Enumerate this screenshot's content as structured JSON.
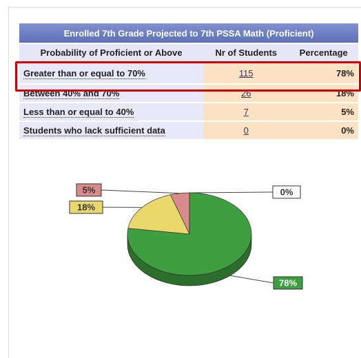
{
  "table": {
    "title": "Enrolled 7th Grade Projected to 7th PSSA Math (Proficient)",
    "headers": [
      "Probability of Proficient or Above",
      "Nr of Students",
      "Percentage"
    ],
    "rows": [
      [
        "Greater than or equal to 70%",
        115,
        "78%"
      ],
      [
        "Between 40% and 70%",
        26,
        "18%"
      ],
      [
        "Less than or equal to 40%",
        7,
        "5%"
      ],
      [
        "Students who lack sufficient data",
        0,
        "0%"
      ]
    ]
  },
  "chart_data": {
    "type": "pie",
    "values": [
      78,
      18,
      5,
      0
    ],
    "value_labels": [
      "78%",
      "18%",
      "5%",
      "0%"
    ],
    "colors": [
      "#3f9e3f",
      "#e9d86c",
      "#d98b8b",
      "#ffffff"
    ]
  }
}
